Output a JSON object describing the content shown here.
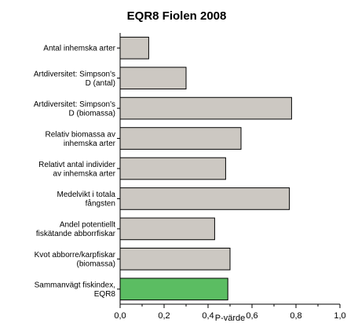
{
  "chart_data": {
    "type": "bar",
    "orientation": "horizontal",
    "title": "EQR8 Fiolen 2008",
    "xlabel": "P-värde",
    "ylabel": "",
    "xlim": [
      0,
      1.0
    ],
    "x_ticks": [
      "0,0",
      "0,2",
      "0,4",
      "0,6",
      "0,8",
      "1,0"
    ],
    "grid": false,
    "categories": [
      [
        "Antal inhemska arter"
      ],
      [
        "Artdiversitet: Simpson's",
        "D (antal)"
      ],
      [
        "Artdiversitet: Simpson's",
        "D (biomassa)"
      ],
      [
        "Relativ biomassa av",
        "inhemska arter"
      ],
      [
        "Relativt antal individer",
        "av inhemska arter"
      ],
      [
        "Medelvikt i totala",
        "fångsten"
      ],
      [
        "Andel potentiellt",
        "fiskätande abborrfiskar"
      ],
      [
        "Kvot abborre/karpfiskar",
        "(biomassa)"
      ],
      [
        "Sammanvägt fiskindex,",
        "EQR8"
      ]
    ],
    "values": [
      0.13,
      0.3,
      0.78,
      0.55,
      0.48,
      0.77,
      0.43,
      0.5,
      0.49
    ],
    "colors": {
      "bar": "#ccc8c2",
      "highlight": "#5bbd62",
      "stroke": "#000000"
    },
    "highlight_index": 8
  }
}
